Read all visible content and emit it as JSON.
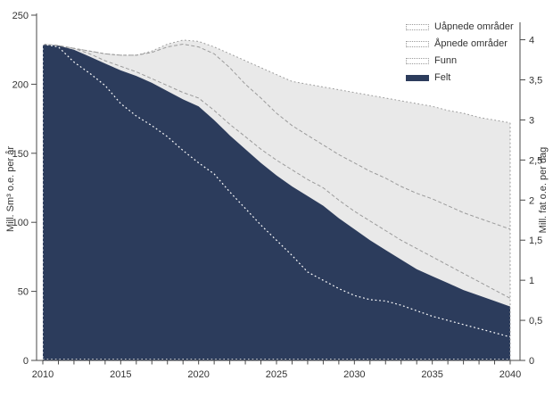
{
  "legend": {
    "items": [
      {
        "label": "Uåpnede områder",
        "swatch": "dotted"
      },
      {
        "label": "Åpnede områder",
        "swatch": "dotted"
      },
      {
        "label": "Funn",
        "swatch": "dotted"
      },
      {
        "label": "Felt",
        "swatch": "solid"
      }
    ]
  },
  "axes": {
    "left": {
      "title": "Mill. Sm³ o.e. per år",
      "tick_labels": [
        "0",
        "50",
        "100",
        "150",
        "200",
        "250"
      ],
      "tick_values": [
        0,
        50,
        100,
        150,
        200,
        250
      ],
      "range": [
        0,
        250
      ]
    },
    "right": {
      "title": "Mill. fat o.e. per dag",
      "tick_labels": [
        "0",
        "0,5",
        "1",
        "1,5",
        "2",
        "2,5",
        "3",
        "3,5",
        "4"
      ],
      "tick_values": [
        0,
        0.5,
        1,
        1.5,
        2,
        2.5,
        3,
        3.5,
        4
      ],
      "range": [
        0,
        4
      ]
    },
    "x": {
      "labeled_years": [
        2010,
        2015,
        2020,
        2025,
        2030,
        2035,
        2040
      ],
      "minor_tick_every_years": 1,
      "range": [
        2010,
        2040
      ]
    }
  },
  "chart_data": {
    "type": "area",
    "title": "",
    "subtitle": "",
    "grid": false,
    "legend_position": "top-right",
    "stacking_note": "values are cumulative stack tops in Mill. Sm3 o.e. per year; Felt is the solid navy area, Funn/Åpnede/Uåpnede tops are dotted gray boundary lines filled light gray; an unlabeled white dotted line runs inside the Felt area",
    "years": [
      2010,
      2011,
      2012,
      2013,
      2014,
      2015,
      2016,
      2017,
      2018,
      2019,
      2020,
      2021,
      2022,
      2023,
      2024,
      2025,
      2026,
      2027,
      2028,
      2029,
      2030,
      2031,
      2032,
      2033,
      2034,
      2035,
      2036,
      2037,
      2038,
      2039,
      2040
    ],
    "series": [
      {
        "id": "felt_top",
        "legend": "Felt",
        "style": "navy filled area",
        "values": [
          229,
          228,
          225,
          220,
          215,
          210,
          206,
          201,
          195,
          189,
          184,
          174,
          163,
          153,
          143,
          134,
          126,
          119,
          112,
          103,
          95,
          87,
          80,
          73,
          66,
          61,
          56,
          51,
          47,
          43,
          39
        ]
      },
      {
        "id": "funn_top",
        "legend": "Funn",
        "style": "gray dashed boundary, light gray fill below",
        "values": [
          229,
          228,
          226,
          222,
          217,
          213,
          209,
          204,
          199,
          194,
          190,
          181,
          171,
          162,
          153,
          145,
          138,
          131,
          125,
          116,
          108,
          101,
          94,
          87,
          81,
          75,
          69,
          63,
          57,
          51,
          45
        ]
      },
      {
        "id": "apnede_top",
        "legend": "Åpnede områder",
        "style": "gray dashed boundary, light gray fill below",
        "values": [
          229,
          228,
          226,
          224,
          222,
          221,
          221,
          223,
          227,
          229,
          227,
          222,
          212,
          200,
          190,
          179,
          170,
          163,
          156,
          149,
          143,
          137,
          132,
          126,
          121,
          117,
          112,
          107,
          103,
          99,
          95
        ]
      },
      {
        "id": "uapnede_top",
        "legend": "Uåpnede områder",
        "style": "gray dotted boundary (total production), light gray fill below",
        "values": [
          229,
          228,
          226,
          224,
          222,
          221,
          221,
          224,
          229,
          232,
          231,
          227,
          222,
          217,
          212,
          207,
          202,
          200,
          198,
          196,
          194,
          192,
          190,
          188,
          186,
          184,
          181,
          179,
          176,
          174,
          172
        ]
      },
      {
        "id": "inner_white_dotted",
        "legend": "",
        "style": "white dotted line inside Felt area (unlabeled)",
        "values": [
          229,
          227,
          216,
          208,
          199,
          186,
          177,
          170,
          162,
          152,
          143,
          135,
          122,
          110,
          98,
          87,
          76,
          64,
          58,
          52,
          47,
          44,
          43,
          40,
          36,
          32,
          29,
          26,
          23,
          20,
          17
        ]
      }
    ],
    "colors": {
      "navy": "#2c3c5c",
      "light_gray": "#e9e9e9",
      "line_gray": "#9b9b9b",
      "axis": "#4a4a4a",
      "text": "#333333",
      "white_line": "#ffffff"
    }
  }
}
